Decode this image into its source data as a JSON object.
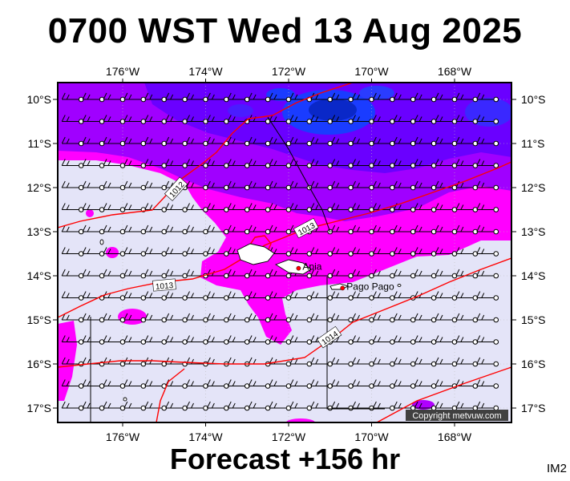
{
  "title": "0700 WST Wed 13 Aug 2025",
  "footer": "Forecast +156 hr",
  "code": "IM2",
  "copyright": "Copyright metvuw.com",
  "lon_labels": [
    "176°W",
    "174°W",
    "172°W",
    "170°W",
    "168°W"
  ],
  "lat_labels": [
    "10°S",
    "11°S",
    "12°S",
    "13°S",
    "14°S",
    "15°S",
    "16°S",
    "17°S"
  ],
  "places": [
    {
      "name": "Apia",
      "lon": -171.76,
      "lat": -13.83
    },
    {
      "name": "Pago Pago",
      "lon": -170.7,
      "lat": -14.28
    }
  ],
  "isobar_labels": [
    "1012",
    "1013",
    "1013",
    "1014"
  ],
  "colors": {
    "background_fill": "#e4e4f8",
    "magenta": "#ff00ff",
    "violet": "#a000ff",
    "purple": "#6a00ff",
    "blue": "#1a3cff",
    "isobar": "#ff0000",
    "coast": "#000000"
  }
}
